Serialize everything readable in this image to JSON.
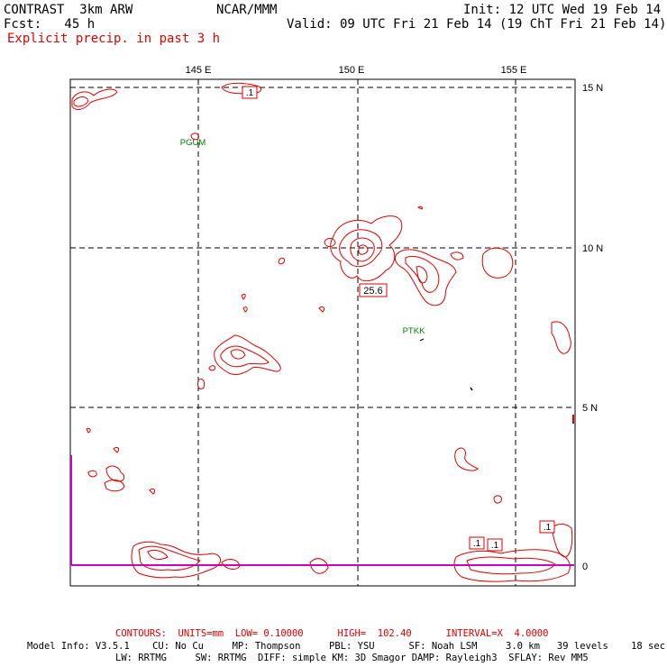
{
  "header": {
    "model": "CONTRAST  3km ARW",
    "fcst": "Fcst:   45 h",
    "center": "NCAR/MMM",
    "init": "Init: 12 UTC Wed 19 Feb 14",
    "valid": "Valid: 09 UTC Fri 21 Feb 14 (19 ChT Fri 21 Feb 14)",
    "field": "Explicit precip. in past 3 h"
  },
  "map": {
    "lon_labels": [
      "145 E",
      "150 E",
      "155 E"
    ],
    "lat_labels": [
      "15 N",
      "10 N",
      "5 N",
      "0"
    ],
    "stations": [
      {
        "name": "PGUM"
      },
      {
        "name": "PTKK"
      }
    ],
    "value_labels": [
      "25.6",
      ".1",
      ".1",
      ".1",
      ".1"
    ],
    "colors": {
      "contour": "#e00000",
      "station": "#007a00",
      "equator": "#cc00cc",
      "grid": "#000000"
    }
  },
  "footer": {
    "contours_line": "CONTOURS:  UNITS=mm  LOW= 0.10000      HIGH=  102.40      INTERVAL=X  4.0000",
    "model_info_1": "Model Info: V3.5.1    CU: No Cu     MP: Thompson     PBL: YSU      SF: Noah LSM     3.0 km   39 levels    18 sec",
    "model_info_2": "LW: RRTMG     SW: RRTMG  DIFF: simple KM: 3D Smagor DAMP: Rayleigh3  SFLAY: Rev MM5"
  }
}
